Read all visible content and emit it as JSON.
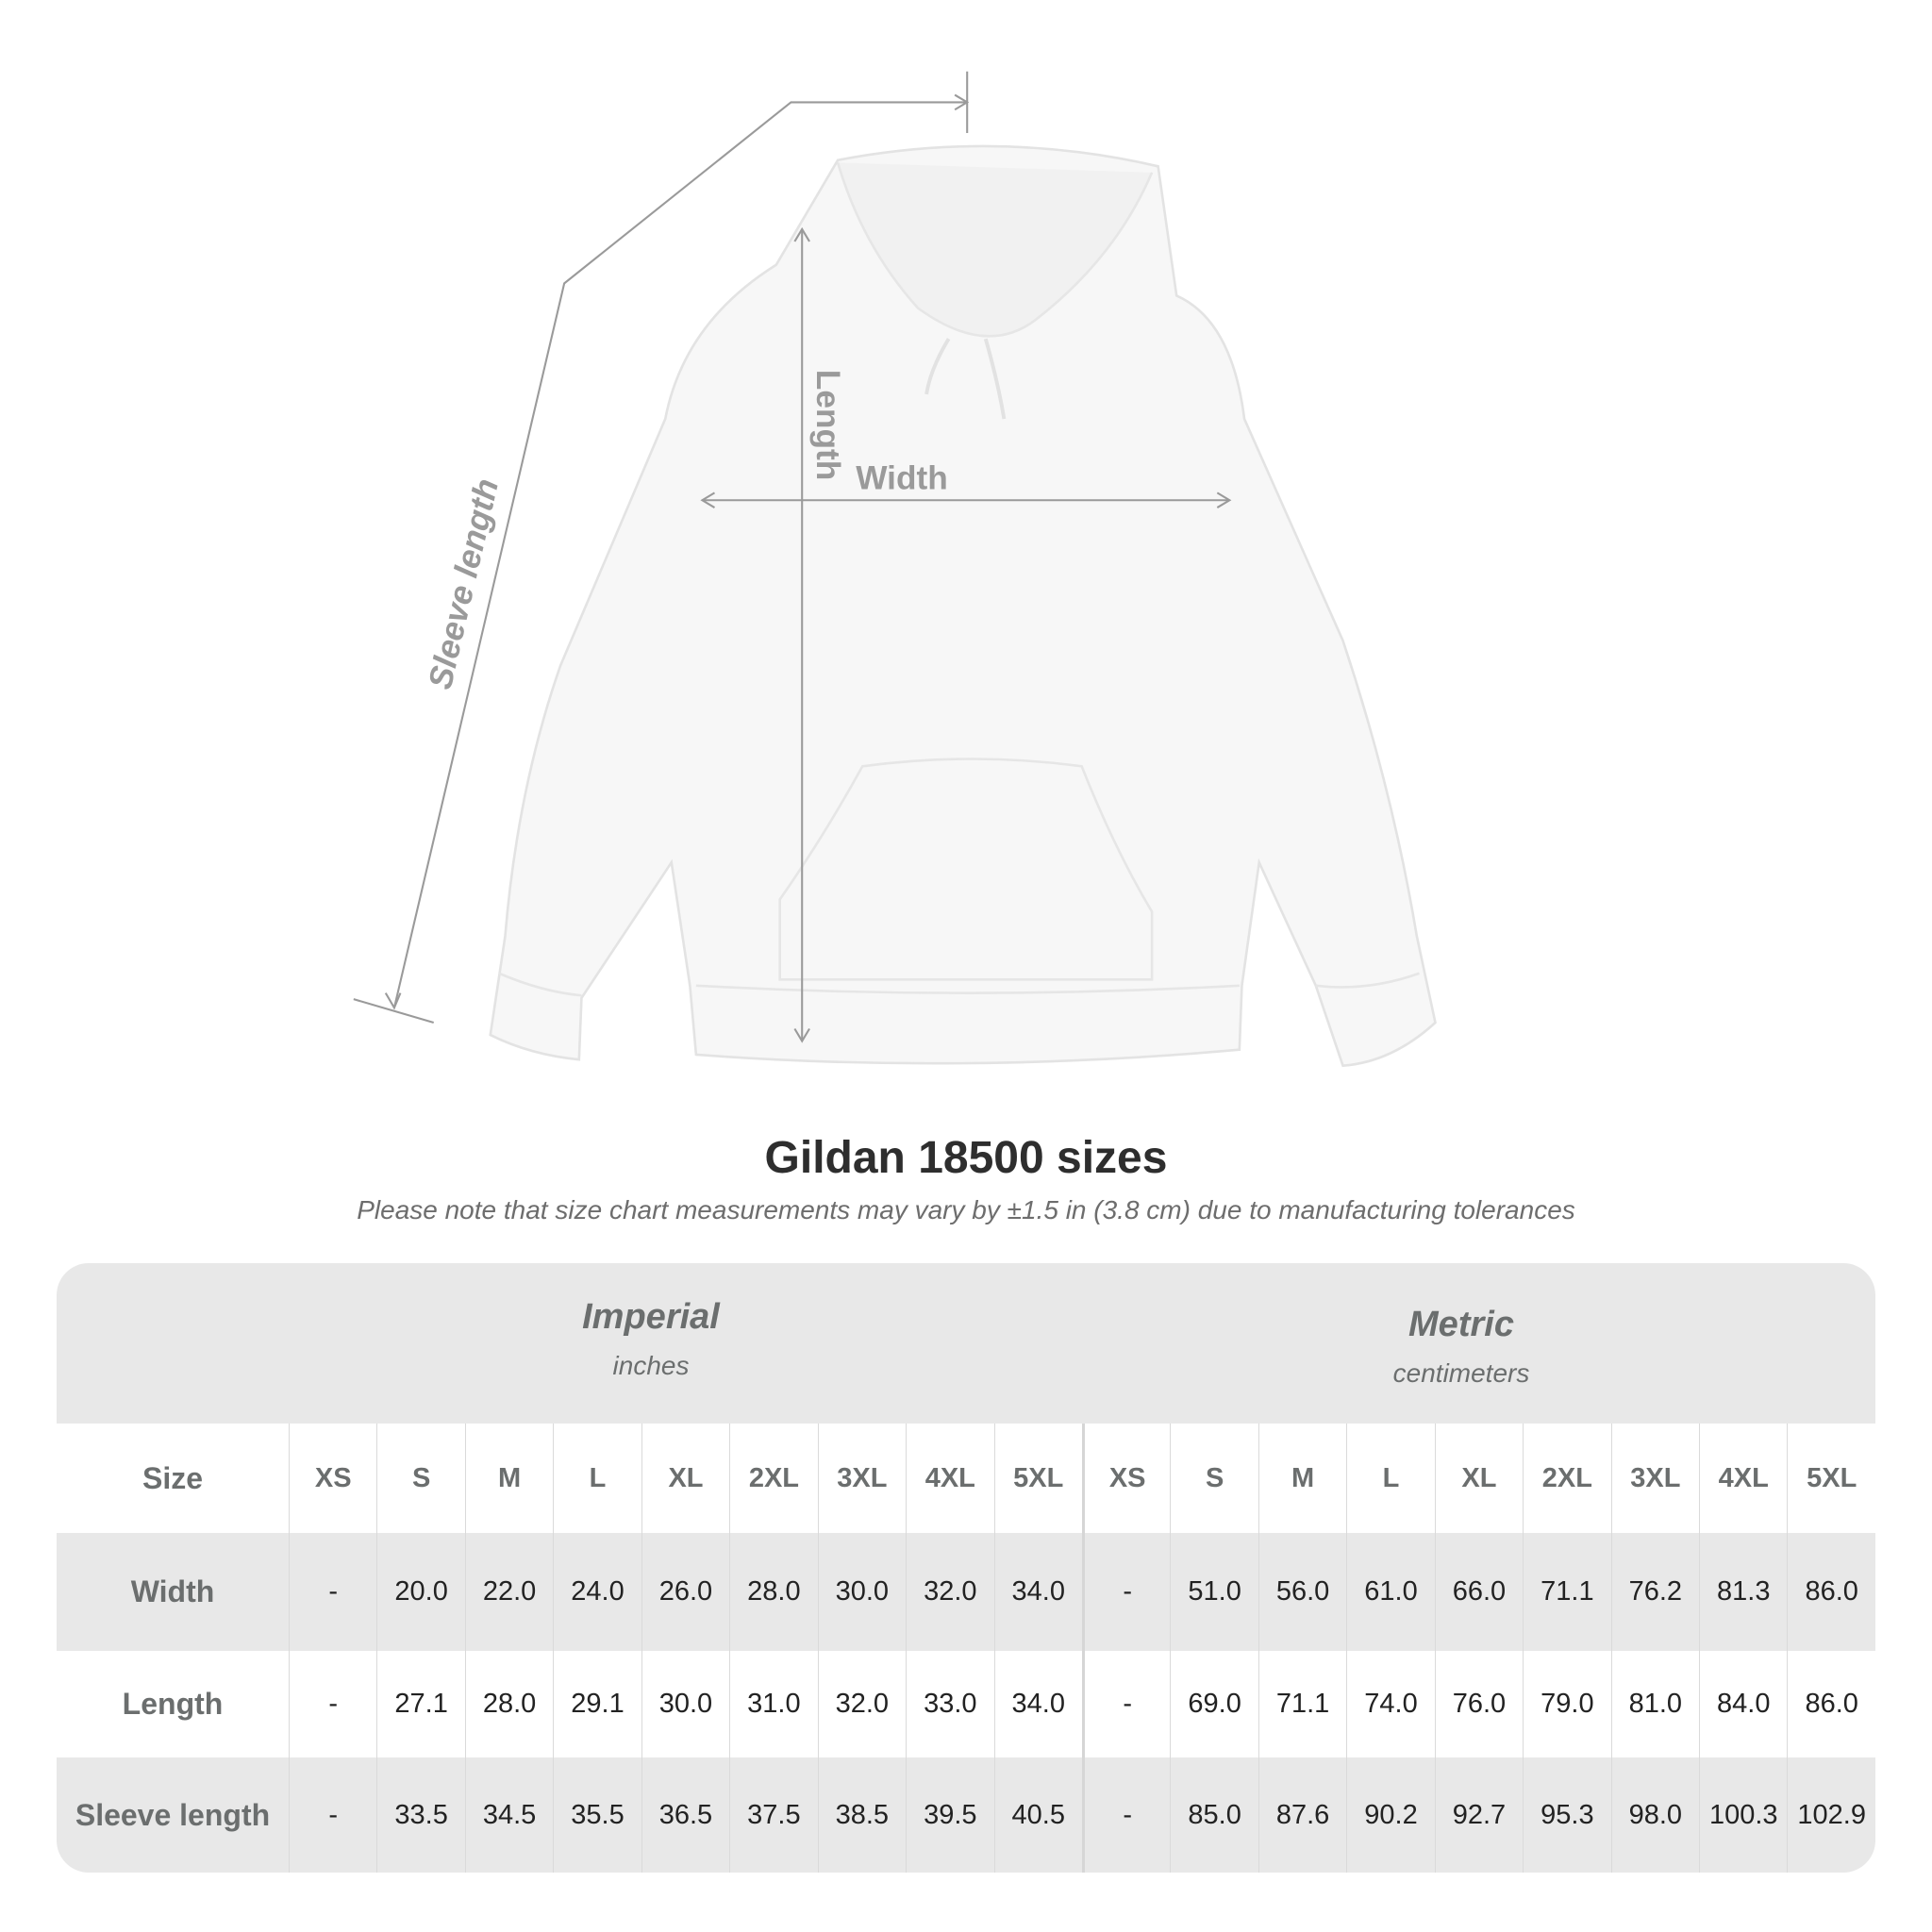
{
  "illustration": {
    "labels": {
      "length": "Length",
      "width": "Width",
      "sleeve": "Sleeve length"
    },
    "garment_color": "#f7f7f7",
    "line_color": "#9a9a9a"
  },
  "title": "Gildan 18500 sizes",
  "note": "Please note that size chart measurements may vary by ±1.5 in (3.8 cm) due to manufacturing tolerances",
  "table": {
    "imperial": {
      "name": "Imperial",
      "unit": "inches"
    },
    "metric": {
      "name": "Metric",
      "unit": "centimeters"
    },
    "size_label": "Size",
    "imperial_sizes": [
      "XS",
      "S",
      "M",
      "L",
      "XL",
      "2XL",
      "3XL",
      "4XL",
      "5XL"
    ],
    "metric_sizes": [
      "XS",
      "S",
      "M",
      "L",
      "XL",
      "2XL",
      "3XL",
      "4XL",
      "5XL"
    ],
    "rows": [
      {
        "label": "Width",
        "imperial": [
          "-",
          "20.0",
          "22.0",
          "24.0",
          "26.0",
          "28.0",
          "30.0",
          "32.0",
          "34.0"
        ],
        "metric": [
          "-",
          "51.0",
          "56.0",
          "61.0",
          "66.0",
          "71.1",
          "76.2",
          "81.3",
          "86.0"
        ]
      },
      {
        "label": "Length",
        "imperial": [
          "-",
          "27.1",
          "28.0",
          "29.1",
          "30.0",
          "31.0",
          "32.0",
          "33.0",
          "34.0"
        ],
        "metric": [
          "-",
          "69.0",
          "71.1",
          "74.0",
          "76.0",
          "79.0",
          "81.0",
          "84.0",
          "86.0"
        ]
      },
      {
        "label": "Sleeve length",
        "imperial": [
          "-",
          "33.5",
          "34.5",
          "35.5",
          "36.5",
          "37.5",
          "38.5",
          "39.5",
          "40.5"
        ],
        "metric": [
          "-",
          "85.0",
          "87.6",
          "90.2",
          "92.7",
          "95.3",
          "98.0",
          "100.3",
          "102.9"
        ]
      }
    ]
  }
}
